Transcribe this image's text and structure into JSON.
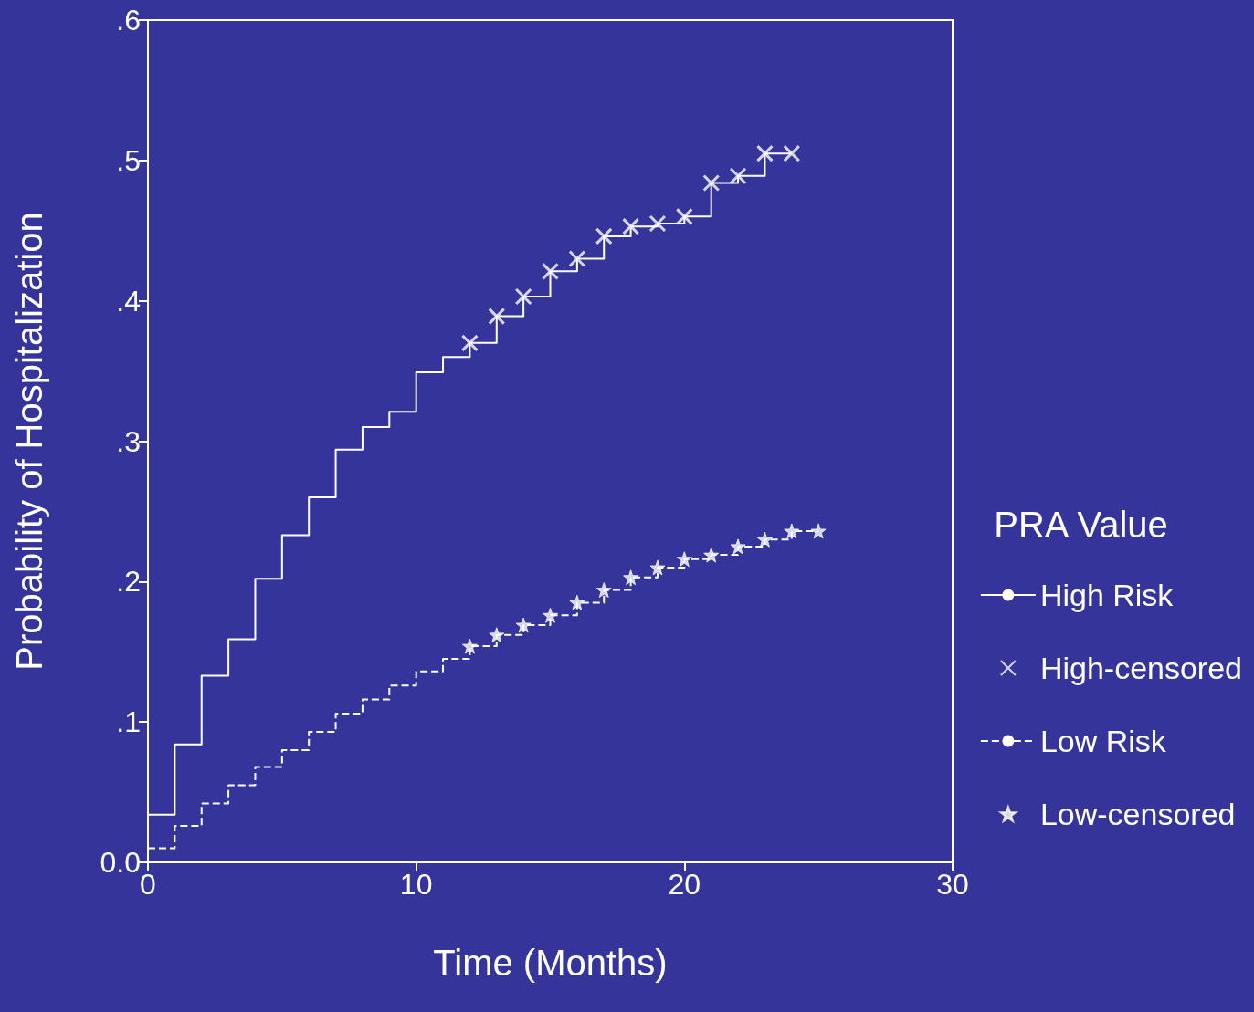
{
  "chart_data": {
    "type": "step",
    "xlabel": "Time (Months)",
    "ylabel": "Probability of Hospitalization",
    "legend_title": "PRA Value",
    "legend": "right",
    "grid": false,
    "xlim": [
      0,
      30
    ],
    "xticks": [
      0,
      10,
      20,
      30
    ],
    "ylim": [
      0,
      0.6
    ],
    "yticks": [
      {
        "value": 0,
        "label": "0.0"
      },
      {
        "value": 0.1,
        "label": ".1"
      },
      {
        "value": 0.2,
        "label": ".2"
      },
      {
        "value": 0.3,
        "label": ".3"
      },
      {
        "value": 0.4,
        "label": ".4"
      },
      {
        "value": 0.5,
        "label": ".5"
      },
      {
        "value": 0.6,
        "label": ".6"
      }
    ],
    "series": [
      {
        "name": "High Risk",
        "color": "#ffffff",
        "line_style": "solid",
        "marker": "none",
        "x": [
          0,
          1,
          2,
          3,
          4,
          5,
          6,
          7,
          8,
          9,
          10,
          11,
          12,
          13,
          14,
          15,
          16,
          17,
          18,
          19,
          20,
          21,
          22,
          23,
          24
        ],
        "values": [
          0.034,
          0.084,
          0.133,
          0.159,
          0.202,
          0.233,
          0.26,
          0.294,
          0.31,
          0.321,
          0.349,
          0.36,
          0.37,
          0.389,
          0.403,
          0.421,
          0.43,
          0.446,
          0.453,
          0.455,
          0.46,
          0.484,
          0.489,
          0.505,
          0.505
        ]
      },
      {
        "name": "High-censored",
        "type": "scatter",
        "color": "#ffffff",
        "marker": "cross",
        "x": [
          12,
          13,
          14,
          15,
          16,
          17,
          18,
          19,
          20,
          21,
          22,
          23,
          24
        ],
        "values": [
          0.37,
          0.389,
          0.403,
          0.421,
          0.43,
          0.446,
          0.453,
          0.455,
          0.46,
          0.484,
          0.489,
          0.505,
          0.505
        ]
      },
      {
        "name": "Low Risk",
        "color": "#ffffff",
        "line_style": "dashed",
        "marker": "none",
        "x": [
          0,
          1,
          2,
          3,
          4,
          5,
          6,
          7,
          8,
          9,
          10,
          11,
          12,
          13,
          14,
          15,
          16,
          17,
          18,
          19,
          20,
          21,
          22,
          23,
          24,
          25
        ],
        "values": [
          0.01,
          0.026,
          0.042,
          0.055,
          0.068,
          0.08,
          0.093,
          0.106,
          0.116,
          0.126,
          0.136,
          0.145,
          0.154,
          0.162,
          0.169,
          0.176,
          0.185,
          0.194,
          0.203,
          0.21,
          0.216,
          0.219,
          0.225,
          0.23,
          0.236,
          0.236
        ]
      },
      {
        "name": "Low-censored",
        "type": "scatter",
        "color": "#ffffff",
        "marker": "star",
        "x": [
          12,
          13,
          14,
          15,
          16,
          17,
          18,
          19,
          20,
          21,
          22,
          23,
          24,
          25
        ],
        "values": [
          0.154,
          0.162,
          0.169,
          0.176,
          0.185,
          0.194,
          0.203,
          0.21,
          0.216,
          0.219,
          0.225,
          0.23,
          0.236,
          0.236
        ]
      }
    ]
  }
}
